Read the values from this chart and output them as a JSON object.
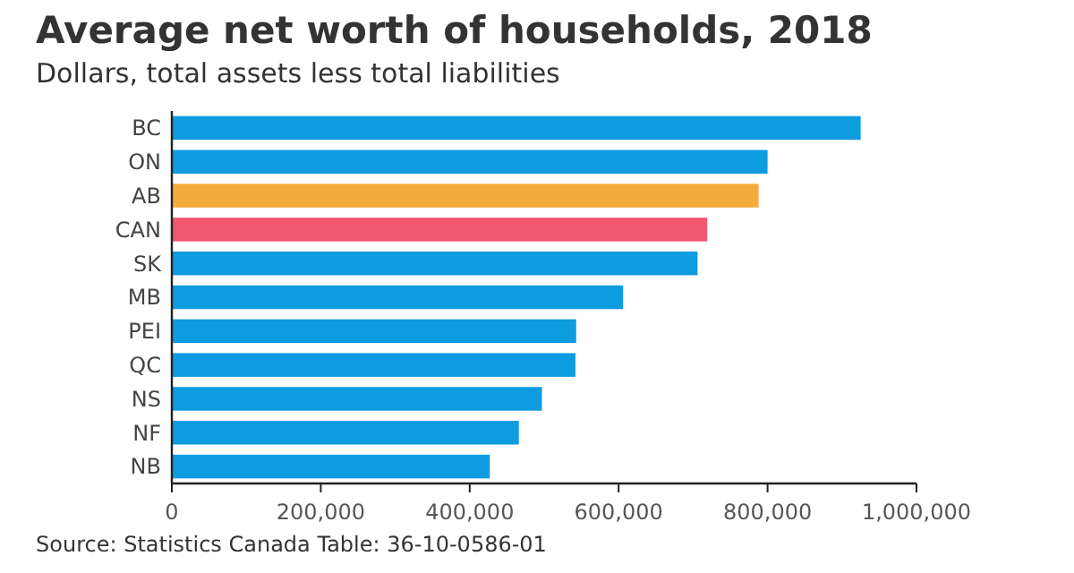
{
  "chart_data": {
    "type": "bar",
    "orientation": "horizontal",
    "title": "Average net worth of households, 2018",
    "subtitle": "Dollars, total assets less total liabilities",
    "categories": [
      "BC",
      "ON",
      "AB",
      "CAN",
      "SK",
      "MB",
      "PEI",
      "QC",
      "NS",
      "NF",
      "NB"
    ],
    "values": [
      925000,
      800000,
      788000,
      719000,
      706000,
      606000,
      543000,
      542000,
      497000,
      466000,
      427000
    ],
    "colors": [
      "#0d9ce0",
      "#0d9ce0",
      "#f5ab3c",
      "#f3566f",
      "#0d9ce0",
      "#0d9ce0",
      "#0d9ce0",
      "#0d9ce0",
      "#0d9ce0",
      "#0d9ce0",
      "#0d9ce0"
    ],
    "xlim": [
      0,
      1000000
    ],
    "xticks": [
      0,
      {
        "value": 200000,
        "label": "200,000"
      },
      {
        "value": 400000,
        "label": "400,000"
      },
      {
        "value": 600000,
        "label": "600,000"
      },
      {
        "value": 800000,
        "label": "800,000"
      },
      {
        "value": 1000000,
        "label": "1,000,000"
      }
    ],
    "grid": false,
    "annotations": [
      "Source: Statistics Canada Table: 36-10-0586-01"
    ]
  }
}
